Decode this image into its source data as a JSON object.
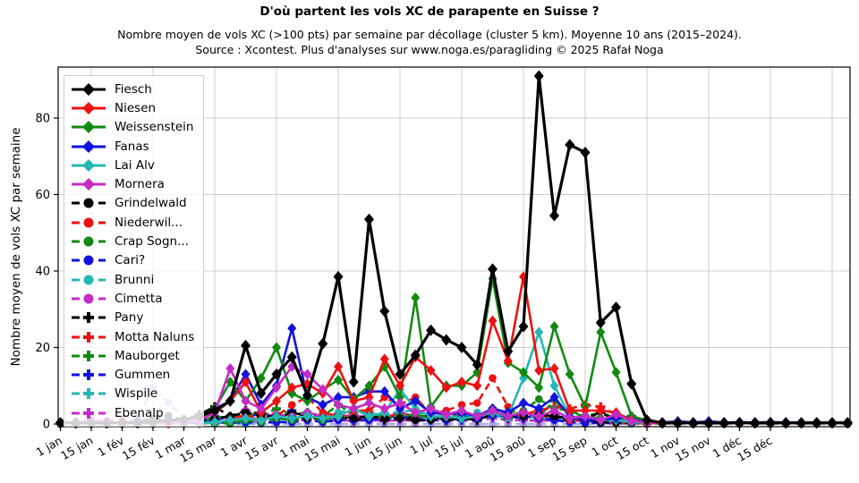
{
  "header": {
    "title": "D'où partent les vols XC de parapente en Suisse ?",
    "subtitle": "Nombre moyen de vols XC (>100 pts) par semaine par décollage (cluster 5 km). Moyenne 10 ans (2015–2024).",
    "source": "Source : Xcontest. Plus d'analyses sur www.noga.es/paragliding © 2025 Rafał Noga"
  },
  "chart_data": {
    "type": "line",
    "title": "D'où partent les vols XC de parapente en Suisse ?",
    "xlabel": "",
    "ylabel": "Nombre moyen de vols XC par semaine",
    "ylim": [
      0,
      93
    ],
    "y_ticks": [
      0,
      20,
      40,
      60,
      80
    ],
    "weeks": 52,
    "x_tick_weeks": [
      0,
      2,
      4,
      6,
      8,
      10,
      12,
      14,
      16,
      18,
      20,
      22,
      24,
      26,
      28,
      30,
      32,
      34,
      36,
      38,
      40,
      42,
      44,
      46
    ],
    "x_tick_labels": [
      "1 jan",
      "15 jan",
      "1 fév",
      "15 fév",
      "1 mar",
      "15 mar",
      "1 avr",
      "15 avr",
      "1 mai",
      "15 mai",
      "1 jun",
      "15 jun",
      "1 jul",
      "15 jul",
      "1 aoû",
      "15 aoû",
      "1 sep",
      "15 sep",
      "1 oct",
      "15 oct",
      "1 nov",
      "15 nov",
      "1 déc",
      "15 déc"
    ],
    "grid_weeks": [
      2,
      6,
      10,
      14,
      18,
      22,
      26,
      30,
      34,
      38,
      42,
      46,
      50
    ],
    "grid_color": "#cccccc",
    "legend_position": "upper left",
    "series": [
      {
        "label": "Fiesch",
        "color": "#000000",
        "style": "solid",
        "marker": "diamond",
        "values": [
          0.3,
          0.3,
          0.3,
          0.3,
          0.3,
          0.3,
          0.5,
          1,
          1,
          2,
          3.5,
          6,
          20.5,
          8,
          13,
          17.5,
          7.5,
          21,
          38.5,
          11,
          53.5,
          29.5,
          13,
          18,
          24.5,
          22,
          20,
          15.5,
          40.5,
          19,
          25.5,
          91,
          54.5,
          73,
          71,
          26.5,
          30.5,
          10.5,
          1,
          0.3,
          0.3,
          0.3,
          0.3,
          0.3,
          0.3,
          0.3,
          0.3,
          0.3,
          0.3,
          0.3,
          0.3,
          0.3
        ]
      },
      {
        "label": "Niesen",
        "color": "#ee1111",
        "style": "solid",
        "marker": "diamond",
        "values": [
          0.2,
          0.2,
          0.2,
          0.2,
          0.2,
          0.2,
          0.2,
          0.2,
          0.5,
          1,
          3,
          6,
          11,
          3,
          6,
          9.5,
          10.5,
          8,
          15,
          6,
          7,
          17,
          10,
          17.5,
          14,
          9.5,
          11,
          10,
          27,
          16.5,
          38.5,
          14,
          14.5,
          3.5,
          3.5,
          3.5,
          3,
          1,
          0.2,
          0.2,
          0.2,
          0.2,
          0.2,
          0.2,
          0.2,
          0.2,
          0.2,
          0.2,
          0.2,
          0.2,
          0.2,
          0.2
        ]
      },
      {
        "label": "Weissenstein",
        "color": "#128a12",
        "style": "solid",
        "marker": "diamond",
        "values": [
          0.2,
          0.2,
          0.2,
          0.2,
          0.2,
          0.2,
          0.2,
          0.2,
          0.5,
          1.5,
          4,
          11,
          6,
          12,
          20,
          8,
          6,
          9,
          11.5,
          6.5,
          10,
          15,
          7,
          33,
          4.5,
          10,
          10,
          13.5,
          38,
          16,
          13.5,
          9.5,
          25.5,
          13,
          4.5,
          24,
          13.5,
          2,
          1,
          0.2,
          0.2,
          0.2,
          0.2,
          0.2,
          0.2,
          0.2,
          0.2,
          0.2,
          0.2,
          0.2,
          0.2,
          0.2
        ]
      },
      {
        "label": "Fanas",
        "color": "#1212e0",
        "style": "solid",
        "marker": "diamond",
        "values": [
          0.2,
          0.2,
          0.2,
          0.2,
          0.2,
          0.2,
          0.2,
          0.2,
          0.2,
          0.5,
          4,
          6,
          13,
          5,
          10,
          25,
          7,
          5,
          7,
          7,
          8.5,
          8.5,
          4,
          6,
          3,
          2.5,
          3,
          2,
          4,
          3,
          5.5,
          4,
          7,
          2,
          1,
          1,
          1.5,
          2,
          0.5,
          0.4,
          0.7,
          0.4,
          0.7,
          0.4,
          0.5,
          0.4,
          0.5,
          0.4,
          0.4,
          0.4,
          0.4,
          0.4
        ]
      },
      {
        "label": "Lai Alv",
        "color": "#25b8b2",
        "style": "solid",
        "marker": "diamond",
        "values": [
          0.2,
          0.2,
          0.2,
          0.2,
          0.2,
          0.2,
          0.2,
          0.2,
          0.2,
          0.2,
          0.5,
          1,
          1.5,
          1,
          2,
          1.5,
          2,
          1.5,
          2,
          4,
          2,
          3,
          9,
          4,
          2,
          2,
          1.5,
          2,
          3,
          2,
          12,
          24,
          10,
          2,
          1.5,
          1,
          1,
          0.5,
          0.2,
          0.2,
          0.2,
          0.2,
          0.2,
          0.2,
          0.2,
          0.2,
          0.2,
          0.2,
          0.2,
          0.2,
          0.2,
          0.2
        ]
      },
      {
        "label": "Mornera",
        "color": "#c42cc4",
        "style": "solid",
        "marker": "diamond",
        "values": [
          0.3,
          0.3,
          0.3,
          0.3,
          0.3,
          0.3,
          0.3,
          0.3,
          0.5,
          1,
          3,
          14.5,
          6,
          4,
          9.5,
          15,
          13,
          9,
          5,
          4,
          5.5,
          4,
          5.5,
          3,
          4,
          2.5,
          3.5,
          2,
          3.5,
          2,
          3,
          2,
          3.5,
          1.5,
          2,
          1,
          2.5,
          0.8,
          0.4,
          0.4,
          0.4,
          0.4,
          0.4,
          0.4,
          0.4,
          0.4,
          0.4,
          0.4,
          0.4,
          0.4,
          0.4,
          0.4
        ]
      },
      {
        "label": "Grindelwald",
        "color": "#000000",
        "style": "dashed",
        "marker": "circle",
        "values": [
          0.2,
          0.2,
          0.2,
          0.3,
          0.3,
          0.5,
          1.5,
          2.2,
          1,
          0.5,
          1.5,
          2,
          3,
          2,
          2,
          1.5,
          1.5,
          1.5,
          2,
          1.5,
          2,
          1.5,
          1.5,
          1,
          1,
          1.5,
          1.5,
          2,
          3,
          2,
          2,
          2.5,
          2,
          1.5,
          1,
          0.5,
          0.5,
          0.3,
          0.2,
          0.2,
          0.2,
          0.2,
          0.2,
          0.2,
          0.2,
          0.2,
          0.2,
          0.2,
          0.2,
          0.2,
          0.2,
          0.2
        ]
      },
      {
        "label": "Niederwil...",
        "color": "#ee1111",
        "style": "dashed",
        "marker": "circle",
        "values": [
          0.2,
          0.2,
          0.2,
          0.2,
          0.2,
          0.2,
          0.2,
          0.2,
          0.2,
          0.2,
          0.5,
          1,
          2.5,
          1.5,
          2,
          5,
          7,
          3,
          2,
          3.5,
          3.5,
          7,
          5,
          7,
          2.5,
          3.5,
          5,
          5.5,
          12,
          4.5,
          3,
          2,
          2,
          1,
          1,
          0.5,
          0.2,
          0.2,
          0.2,
          0.2,
          0.2,
          0.2,
          0.2,
          0.2,
          0.2,
          0.2,
          0.2,
          0.2,
          0.2,
          0.2,
          0.2,
          0.2
        ]
      },
      {
        "label": "Crap Sogn...",
        "color": "#128a12",
        "style": "dashed",
        "marker": "circle",
        "values": [
          0.2,
          0.2,
          0.2,
          0.2,
          0.2,
          0.2,
          0.2,
          0.2,
          0.2,
          0.2,
          0.2,
          0.2,
          1,
          0.5,
          1.5,
          1,
          1.5,
          1,
          2,
          1.5,
          2,
          1.5,
          2,
          2.5,
          1.5,
          2,
          3,
          2,
          4,
          3,
          3.5,
          6.5,
          4,
          3.5,
          2,
          1.5,
          1,
          0.5,
          0.2,
          0.2,
          0.2,
          0.2,
          0.2,
          0.2,
          0.2,
          0.2,
          0.2,
          0.2,
          0.2,
          0.2,
          0.2,
          0.2
        ]
      },
      {
        "label": "Cari?",
        "color": "#1212e0",
        "style": "dashed",
        "marker": "circle",
        "values": [
          0.2,
          0.2,
          0.2,
          0.2,
          0.2,
          0.2,
          1,
          1.5,
          1,
          1.7,
          0.5,
          0.3,
          0.5,
          0.3,
          0.5,
          0.5,
          1,
          0.5,
          1,
          1,
          1,
          1.5,
          1.5,
          1,
          1,
          1,
          2,
          1.5,
          2.5,
          2,
          2,
          1.5,
          1,
          0.5,
          0.2,
          0.2,
          0.2,
          0.2,
          0.2,
          0.2,
          0.2,
          0.2,
          0.2,
          0.2,
          0.2,
          0.2,
          0.2,
          0.2,
          0.2,
          0.2,
          0.2,
          0.2
        ]
      },
      {
        "label": "Brunni",
        "color": "#25b8b2",
        "style": "dashed",
        "marker": "circle",
        "values": [
          0.2,
          0.2,
          0.2,
          0.2,
          0.2,
          0.2,
          0.2,
          0.2,
          0.2,
          0.2,
          0.2,
          0.2,
          0.2,
          0.2,
          1,
          1.5,
          2,
          1.5,
          3,
          4,
          3,
          2,
          3.5,
          3.3,
          2,
          1.5,
          2,
          3,
          2.5,
          1.5,
          2,
          1.5,
          2,
          1.7,
          1,
          0.5,
          0.2,
          0.2,
          0.2,
          0.2,
          0.2,
          0.2,
          0.2,
          0.2,
          0.2,
          0.2,
          0.2,
          0.2,
          0.2,
          0.2,
          0.2,
          0.2
        ]
      },
      {
        "label": "Cimetta",
        "color": "#c42cc4",
        "style": "dashed",
        "marker": "circle",
        "values": [
          0.5,
          0.8,
          1,
          0.8,
          1,
          0.8,
          1,
          0.8,
          1,
          1.5,
          2,
          1.5,
          3.5,
          2,
          2.5,
          2,
          3,
          2,
          2.5,
          2,
          2,
          2.5,
          3,
          2,
          2,
          1.5,
          2.5,
          2,
          3,
          2,
          2,
          1.5,
          2.5,
          1.5,
          1.5,
          1,
          1,
          0.8,
          0.5,
          0.4,
          0.4,
          0.4,
          0.4,
          0.4,
          0.4,
          0.4,
          0.4,
          0.4,
          0.4,
          0.4,
          0.4,
          0.4
        ]
      },
      {
        "label": "Pany",
        "color": "#000000",
        "style": "dashdot",
        "marker": "plus",
        "values": [
          0.2,
          0.2,
          0.2,
          0.2,
          0.2,
          0.2,
          0.2,
          0.5,
          1,
          2.5,
          4.5,
          2,
          3.5,
          2.5,
          1.5,
          3,
          2,
          1.5,
          2,
          1,
          1.5,
          1,
          1.5,
          2,
          2,
          1,
          1.5,
          1,
          2.5,
          1.5,
          2,
          1.5,
          1.5,
          1,
          1.5,
          3,
          1,
          0.5,
          0.2,
          0.2,
          0.2,
          0.2,
          0.2,
          0.2,
          0.2,
          0.2,
          0.2,
          0.2,
          0.2,
          0.2,
          0.2,
          0.2
        ]
      },
      {
        "label": "Motta Naluns",
        "color": "#ee1111",
        "style": "dashdot",
        "marker": "plus",
        "values": [
          0.2,
          0.2,
          0.2,
          0.2,
          0.2,
          0.2,
          0.2,
          0.2,
          0.2,
          0.2,
          0.5,
          1,
          2,
          1,
          2.5,
          1.5,
          2,
          1.5,
          2.5,
          1.5,
          2,
          1.5,
          3,
          2,
          2,
          1.5,
          2,
          1.5,
          3,
          2,
          2.5,
          3.5,
          4.5,
          4,
          5,
          4.5,
          2.5,
          1,
          0.2,
          0.2,
          0.2,
          0.2,
          0.2,
          0.2,
          0.2,
          0.2,
          0.2,
          0.2,
          0.2,
          0.2,
          0.2,
          0.2
        ]
      },
      {
        "label": "Mauborget",
        "color": "#128a12",
        "style": "dashdot",
        "marker": "plus",
        "values": [
          0.2,
          0.2,
          0.2,
          0.2,
          0.2,
          0.2,
          0.2,
          0.2,
          0.2,
          0.5,
          2,
          1.5,
          3,
          2,
          4,
          2.5,
          3,
          2,
          5,
          2.5,
          3,
          2,
          2.5,
          2,
          2,
          1.5,
          2.5,
          2,
          4,
          2.5,
          3,
          2,
          6,
          3,
          2,
          3,
          1.5,
          0.5,
          0.2,
          0.2,
          0.2,
          0.2,
          0.2,
          0.2,
          0.2,
          0.2,
          0.2,
          0.2,
          0.2,
          0.2,
          0.2,
          0.2
        ]
      },
      {
        "label": "Gummen",
        "color": "#1212e0",
        "style": "dashdot",
        "marker": "plus",
        "values": [
          0.3,
          0.3,
          0.3,
          0.3,
          0.3,
          0.3,
          0.3,
          0.3,
          0.3,
          0.3,
          1,
          2,
          1.5,
          3,
          2,
          3.5,
          2,
          2,
          1.5,
          2,
          1.5,
          2.5,
          1.5,
          2,
          1,
          1.5,
          1,
          1.5,
          2,
          2,
          1.5,
          2.5,
          2,
          1.5,
          1,
          1,
          1,
          2,
          0.5,
          0.3,
          0.3,
          0.3,
          0.3,
          0.3,
          0.3,
          0.3,
          0.3,
          0.3,
          0.3,
          0.3,
          0.3,
          0.3
        ]
      },
      {
        "label": "Wispile",
        "color": "#25b8b2",
        "style": "dashdot",
        "marker": "plus",
        "values": [
          0.2,
          0.2,
          0.2,
          0.2,
          0.2,
          0.2,
          0.2,
          0.2,
          0.2,
          0.2,
          0.2,
          0.5,
          1.5,
          1,
          2,
          1.5,
          2.5,
          1.5,
          2,
          1.5,
          2,
          1.5,
          2,
          1.5,
          1.5,
          1,
          1.5,
          1,
          2,
          1.5,
          2,
          1.5,
          1.5,
          1,
          1,
          0.5,
          0.2,
          0.2,
          0.2,
          0.2,
          0.2,
          0.2,
          0.2,
          0.2,
          0.2,
          0.2,
          0.2,
          0.2,
          0.2,
          0.2,
          0.2,
          0.2
        ]
      },
      {
        "label": "Ebenalp",
        "color": "#c42cc4",
        "style": "dashdot",
        "marker": "plus",
        "values": [
          0.3,
          0.3,
          0.3,
          0.3,
          0.3,
          0.3,
          0.3,
          0.3,
          0.3,
          0.3,
          0.3,
          0.3,
          0.8,
          0.5,
          2.5,
          1,
          1,
          0.8,
          1,
          0.8,
          1,
          0.8,
          1,
          0.8,
          1,
          0.8,
          1,
          0.8,
          1.5,
          1,
          1,
          0.8,
          1,
          0.8,
          0.8,
          0.5,
          0.3,
          0.3,
          0.3,
          0.3,
          0.3,
          0.3,
          0.3,
          0.3,
          0.3,
          0.3,
          0.3,
          0.3,
          0.3,
          0.3,
          0.3,
          0.3
        ]
      },
      {
        "label": "",
        "color": "#a5a5ef",
        "style": "dashed",
        "marker": "circle",
        "note": "unlabeled pale series, February peak",
        "values": [
          0,
          0,
          0,
          0,
          0.3,
          1.3,
          9.5,
          5.6,
          1.5,
          0.5,
          0,
          0,
          0,
          0,
          0,
          0,
          0,
          0,
          0,
          0,
          0,
          0,
          0,
          0,
          0,
          0,
          0,
          0,
          0,
          0,
          0,
          0,
          0,
          0,
          0,
          0,
          0,
          0,
          0,
          0,
          0,
          0,
          0,
          0,
          0,
          0,
          0,
          0,
          0,
          0,
          0,
          0
        ]
      }
    ]
  }
}
